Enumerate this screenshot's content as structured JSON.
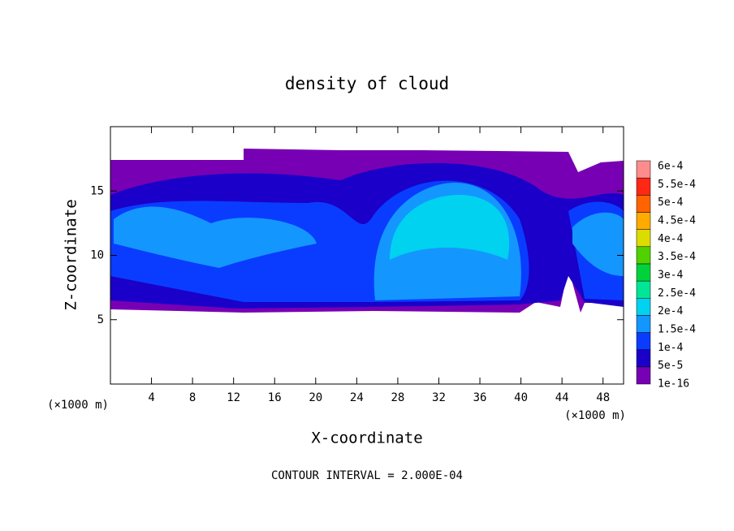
{
  "chart_data": {
    "type": "contour",
    "title": "density of cloud",
    "x_label": "X-coordinate",
    "y_label": "Z-coordinate",
    "x_unit_label": "(×1000 m)",
    "y_unit_label": "(×1000 m)",
    "footer": "CONTOUR INTERVAL = 2.000E-04",
    "xlim": [
      0,
      50
    ],
    "ylim": [
      0,
      20
    ],
    "xticks": [
      4,
      8,
      12,
      16,
      20,
      24,
      28,
      32,
      36,
      40,
      44,
      48
    ],
    "yticks": [
      5,
      10,
      15
    ],
    "levels": [
      {
        "value": 1e-16,
        "label": "1e-16",
        "color": "#7800b4"
      },
      {
        "value": 5e-05,
        "label": "5e-5",
        "color": "#1a00c8"
      },
      {
        "value": 0.0001,
        "label": "1e-4",
        "color": "#0a3cff"
      },
      {
        "value": 0.00015,
        "label": "1.5e-4",
        "color": "#1496ff"
      },
      {
        "value": 0.0002,
        "label": "2e-4",
        "color": "#00d2f0"
      },
      {
        "value": 0.00025,
        "label": "2.5e-4",
        "color": "#00e696"
      },
      {
        "value": 0.0003,
        "label": "3e-4",
        "color": "#00d23c"
      },
      {
        "value": 0.00035,
        "label": "3.5e-4",
        "color": "#50d200"
      },
      {
        "value": 0.0004,
        "label": "4e-4",
        "color": "#dcdc00"
      },
      {
        "value": 0.00045,
        "label": "4.5e-4",
        "color": "#ffaa00"
      },
      {
        "value": 0.0005,
        "label": "5e-4",
        "color": "#ff6400"
      },
      {
        "value": 0.00055,
        "label": "5.5e-4",
        "color": "#ff2814"
      },
      {
        "value": 0.0006,
        "label": "6e-4",
        "color": "#ff8c8c"
      }
    ]
  }
}
